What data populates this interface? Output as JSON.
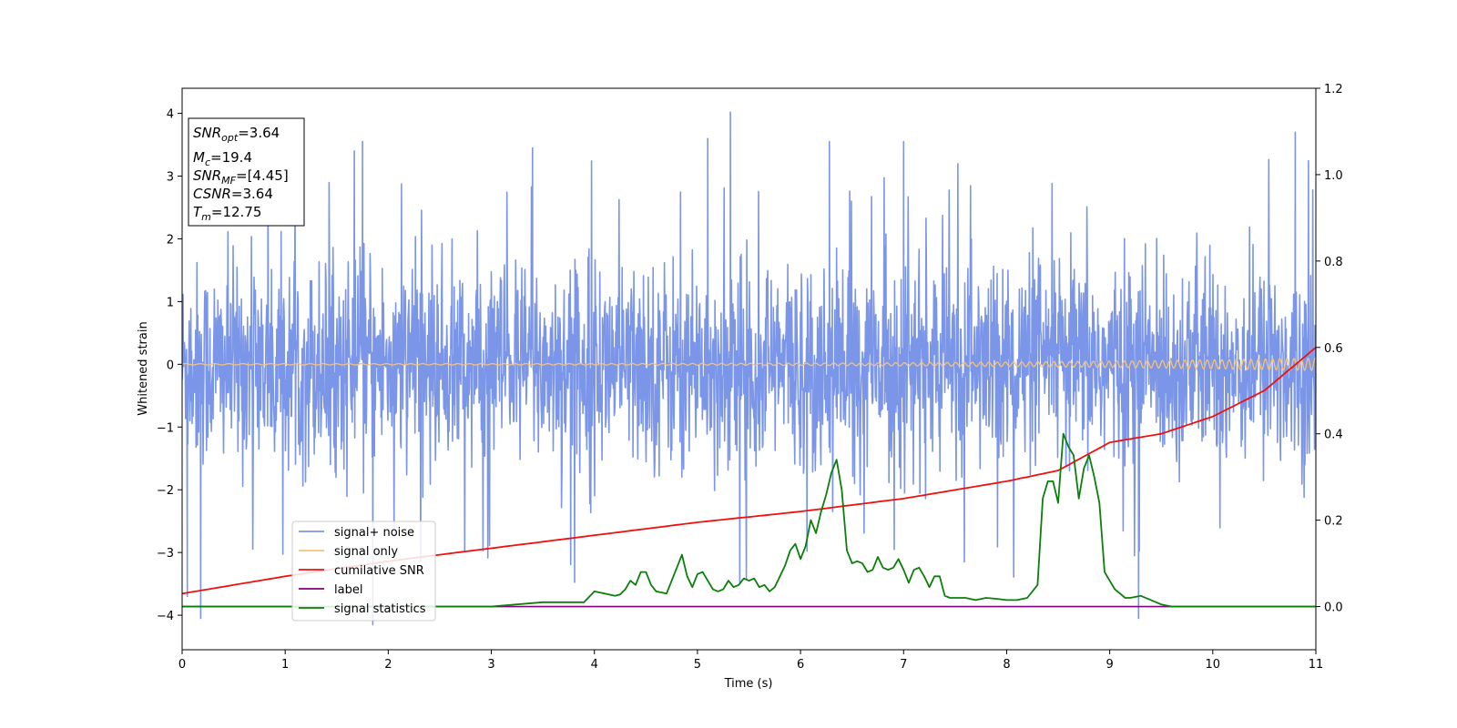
{
  "chart_data": {
    "type": "line",
    "title": "",
    "xlabel": "Time (s)",
    "ylabel": "Whitened strain",
    "xlim": [
      0,
      11
    ],
    "ylim_left": [
      -4.55,
      4.4
    ],
    "ylim_right": [
      -0.1,
      1.2
    ],
    "x_ticks": [
      "0",
      "1",
      "2",
      "3",
      "4",
      "5",
      "6",
      "7",
      "8",
      "9",
      "10",
      "11"
    ],
    "y_ticks_left": [
      "−4",
      "−3",
      "−2",
      "−1",
      "0",
      "1",
      "2",
      "3",
      "4"
    ],
    "y_ticks_right": [
      "0.0",
      "0.2",
      "0.4",
      "0.6",
      "0.8",
      "1.0",
      "1.2"
    ],
    "grid": false,
    "legend_position": "lower-left",
    "colors": {
      "signal_noise": "#7b96e8",
      "signal_only": "#f5c27a",
      "cumulative_snr": "#ee1111",
      "label": "#800080",
      "signal_statistics": "#0a7f0a"
    },
    "series": [
      {
        "name": "signal+ noise",
        "axis": "left",
        "note_values": "dense noisy whitened strain, roughly within ±2 with spikes to about ±4; notable peaks",
        "peaks_x": [
          0.05,
          0.18,
          1.75,
          1.85,
          3.4,
          5.32,
          5.1,
          6.28,
          7.0,
          9.28,
          10.8
        ],
        "peaks_y": [
          -3.7,
          -4.05,
          3.55,
          -4.15,
          3.45,
          4.02,
          3.6,
          3.55,
          3.55,
          -4.05,
          3.7
        ]
      },
      {
        "name": "signal only",
        "axis": "left",
        "x": [
          0,
          11
        ],
        "amplitude_start": 0.01,
        "amplitude_end": 0.1
      },
      {
        "name": "cumilative SNR",
        "axis": "right",
        "x": [
          0,
          1,
          2,
          3,
          4,
          5,
          6,
          7,
          8,
          8.5,
          9,
          9.5,
          10,
          10.5,
          11
        ],
        "values": [
          0.03,
          0.07,
          0.105,
          0.135,
          0.165,
          0.195,
          0.22,
          0.25,
          0.29,
          0.315,
          0.38,
          0.4,
          0.44,
          0.5,
          0.6
        ]
      },
      {
        "name": "label",
        "axis": "right",
        "x": [
          0,
          11
        ],
        "values": [
          0.0,
          0.0
        ]
      },
      {
        "name": "signal statistics",
        "axis": "right",
        "x": [
          0,
          0.5,
          1,
          1.5,
          2,
          2.5,
          3,
          3.5,
          3.8,
          3.9,
          4.0,
          4.1,
          4.2,
          4.25,
          4.3,
          4.35,
          4.4,
          4.45,
          4.5,
          4.55,
          4.6,
          4.7,
          4.75,
          4.8,
          4.85,
          4.9,
          4.95,
          5.0,
          5.05,
          5.1,
          5.15,
          5.2,
          5.25,
          5.3,
          5.35,
          5.4,
          5.45,
          5.5,
          5.55,
          5.6,
          5.65,
          5.7,
          5.75,
          5.8,
          5.85,
          5.9,
          5.95,
          6.0,
          6.05,
          6.1,
          6.15,
          6.2,
          6.25,
          6.3,
          6.35,
          6.4,
          6.45,
          6.5,
          6.55,
          6.6,
          6.65,
          6.7,
          6.75,
          6.8,
          6.85,
          6.9,
          6.95,
          7.0,
          7.05,
          7.1,
          7.15,
          7.2,
          7.25,
          7.3,
          7.35,
          7.4,
          7.45,
          7.5,
          7.6,
          7.7,
          7.8,
          7.9,
          8.0,
          8.1,
          8.2,
          8.3,
          8.35,
          8.4,
          8.45,
          8.5,
          8.55,
          8.6,
          8.65,
          8.7,
          8.75,
          8.8,
          8.85,
          8.9,
          8.95,
          9.0,
          9.05,
          9.1,
          9.15,
          9.2,
          9.3,
          9.4,
          9.5,
          9.6,
          9.7,
          9.8,
          9.9,
          10.0,
          10.5,
          11
        ],
        "values": [
          0.0,
          0.0,
          0.0,
          0.0,
          0.0,
          0.0,
          0.0,
          0.01,
          0.01,
          0.01,
          0.035,
          0.03,
          0.025,
          0.028,
          0.04,
          0.06,
          0.05,
          0.08,
          0.08,
          0.05,
          0.035,
          0.03,
          0.06,
          0.09,
          0.12,
          0.07,
          0.045,
          0.075,
          0.08,
          0.06,
          0.04,
          0.035,
          0.04,
          0.06,
          0.045,
          0.05,
          0.065,
          0.06,
          0.065,
          0.045,
          0.05,
          0.035,
          0.045,
          0.07,
          0.095,
          0.13,
          0.145,
          0.11,
          0.14,
          0.2,
          0.17,
          0.22,
          0.26,
          0.31,
          0.34,
          0.27,
          0.13,
          0.1,
          0.105,
          0.1,
          0.08,
          0.085,
          0.115,
          0.09,
          0.085,
          0.09,
          0.11,
          0.085,
          0.055,
          0.085,
          0.09,
          0.07,
          0.045,
          0.07,
          0.07,
          0.025,
          0.02,
          0.02,
          0.02,
          0.015,
          0.02,
          0.018,
          0.015,
          0.015,
          0.02,
          0.05,
          0.25,
          0.29,
          0.29,
          0.24,
          0.4,
          0.37,
          0.35,
          0.25,
          0.32,
          0.35,
          0.3,
          0.24,
          0.08,
          0.06,
          0.04,
          0.03,
          0.02,
          0.02,
          0.025,
          0.015,
          0.005,
          0.0,
          0.0,
          0.0,
          0.0,
          0.0,
          0.0,
          0.0
        ]
      }
    ],
    "legend": [
      {
        "label": "signal+ noise",
        "color_key": "signal_noise"
      },
      {
        "label": "signal only",
        "color_key": "signal_only"
      },
      {
        "label": "cumilative SNR",
        "color_key": "cumulative_snr"
      },
      {
        "label": "label",
        "color_key": "label"
      },
      {
        "label": "signal statistics",
        "color_key": "signal_statistics"
      }
    ]
  },
  "info_box": {
    "snr_opt_main": "SNR",
    "snr_opt_sub": "opt",
    "snr_opt_value": "=3.64",
    "mc_main": "M",
    "mc_sub": "c",
    "mc_value": "=19.4",
    "snr_mf_main": "SNR",
    "snr_mf_sub": "MF",
    "snr_mf_value": "=[4.45]",
    "csnr_main": "CSNR",
    "csnr_value": "=3.64",
    "tm_main": "T",
    "tm_sub": "m",
    "tm_value": "=12.75"
  }
}
